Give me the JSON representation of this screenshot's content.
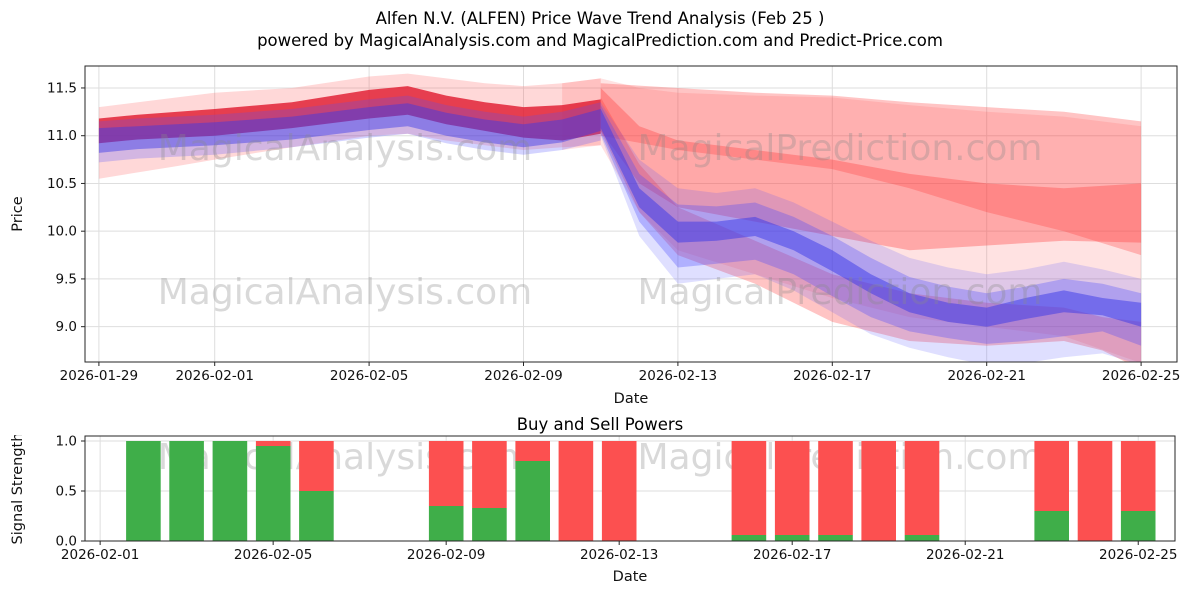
{
  "figure": {
    "title": "Alfen N.V. (ALFEN) Price Wave Trend Analysis (Feb 25 )",
    "subtitle": "powered by MagicalAnalysis.com and MagicalPrediction.com and Predict-Price.com"
  },
  "watermarks": {
    "left": "MagicalAnalysis.com",
    "right": "MagicalPrediction.com"
  },
  "chart_data": [
    {
      "type": "area",
      "name": "price-wave-trend",
      "title": "Alfen N.V. (ALFEN) Price Wave Trend Analysis (Feb 25 )",
      "xlabel": "Date",
      "ylabel": "Price",
      "ylim": [
        8.63,
        11.73
      ],
      "y_ticks": [
        9.0,
        9.5,
        10.0,
        10.5,
        11.0,
        11.5
      ],
      "x_start_date": "2026-01-29",
      "x_range_days": [
        -0.36,
        27.93
      ],
      "x_ticks": [
        {
          "label": "2026-01-29",
          "d": 0
        },
        {
          "label": "2026-02-01",
          "d": 3
        },
        {
          "label": "2026-02-05",
          "d": 7
        },
        {
          "label": "2026-02-09",
          "d": 11
        },
        {
          "label": "2026-02-13",
          "d": 15
        },
        {
          "label": "2026-02-17",
          "d": 19
        },
        {
          "label": "2026-02-21",
          "d": 23
        },
        {
          "label": "2026-02-25",
          "d": 27
        }
      ],
      "grid": true,
      "legend": "none",
      "bands": [
        {
          "name": "red-envelope-left",
          "color": "#ff4d4d",
          "opacity": 0.22,
          "x": [
            0,
            2,
            3,
            5,
            7,
            8,
            9,
            10,
            11,
            12,
            13
          ],
          "upper": [
            11.3,
            11.4,
            11.45,
            11.5,
            11.62,
            11.65,
            11.6,
            11.55,
            11.52,
            11.55,
            11.6
          ],
          "lower": [
            10.55,
            10.68,
            10.75,
            10.88,
            11.0,
            11.02,
            10.95,
            10.9,
            10.85,
            10.88,
            10.9
          ]
        },
        {
          "name": "red-envelope-right-wide",
          "color": "#ff4d4d",
          "opacity": 0.16,
          "x": [
            12,
            13,
            14,
            15,
            17,
            19,
            21,
            23,
            25,
            27
          ],
          "upper": [
            11.55,
            11.6,
            11.5,
            11.45,
            11.42,
            11.4,
            11.32,
            11.25,
            11.2,
            11.1
          ],
          "lower": [
            10.85,
            10.9,
            10.2,
            9.8,
            9.55,
            9.3,
            9.1,
            9.0,
            8.9,
            8.62
          ]
        },
        {
          "name": "red-band-upper-right",
          "color": "#ff3b3b",
          "opacity": 0.3,
          "x": [
            13,
            15,
            17,
            19,
            21,
            23,
            25,
            27
          ],
          "upper": [
            11.55,
            11.5,
            11.45,
            11.42,
            11.35,
            11.3,
            11.25,
            11.15
          ],
          "lower": [
            11.0,
            10.85,
            10.75,
            10.65,
            10.45,
            10.2,
            10.0,
            9.75
          ]
        },
        {
          "name": "red-band-mid-right",
          "color": "#ff3b3b",
          "opacity": 0.35,
          "x": [
            13,
            14,
            15,
            17,
            19,
            21,
            23,
            25,
            27
          ],
          "upper": [
            11.5,
            11.1,
            10.95,
            10.85,
            10.75,
            10.6,
            10.5,
            10.45,
            10.5
          ],
          "lower": [
            11.05,
            10.5,
            10.25,
            10.1,
            9.95,
            9.8,
            9.85,
            9.9,
            9.88
          ]
        },
        {
          "name": "red-band-low-right",
          "color": "#ff3b3b",
          "opacity": 0.3,
          "x": [
            13,
            14,
            15,
            17,
            19,
            21,
            23,
            25,
            26,
            27
          ],
          "upper": [
            11.4,
            10.7,
            10.25,
            9.9,
            9.55,
            9.35,
            9.25,
            9.2,
            9.1,
            9.05
          ],
          "lower": [
            11.05,
            10.2,
            9.75,
            9.45,
            9.05,
            8.85,
            8.8,
            8.85,
            8.75,
            8.55
          ]
        },
        {
          "name": "red-core",
          "color": "#e0182d",
          "opacity": 0.8,
          "x": [
            0,
            1,
            3,
            5,
            7,
            8,
            9,
            10,
            11,
            12,
            13
          ],
          "upper": [
            11.18,
            11.22,
            11.28,
            11.35,
            11.48,
            11.52,
            11.42,
            11.35,
            11.3,
            11.32,
            11.38
          ],
          "lower": [
            10.92,
            10.96,
            11.0,
            11.08,
            11.18,
            11.22,
            11.12,
            11.05,
            10.98,
            10.95,
            11.02
          ]
        },
        {
          "name": "blue-left-outer",
          "color": "#5050ff",
          "opacity": 0.25,
          "x": [
            0,
            1,
            3,
            5,
            7,
            8,
            9,
            10,
            11,
            12,
            13
          ],
          "upper": [
            11.15,
            11.18,
            11.22,
            11.28,
            11.38,
            11.42,
            11.32,
            11.25,
            11.2,
            11.25,
            11.35
          ],
          "lower": [
            10.72,
            10.76,
            10.8,
            10.88,
            10.98,
            11.02,
            10.92,
            10.85,
            10.8,
            10.85,
            10.95
          ]
        },
        {
          "name": "blue-left-core",
          "color": "#3838e8",
          "opacity": 0.45,
          "x": [
            0,
            1,
            3,
            5,
            7,
            8,
            9,
            10,
            11,
            12,
            13
          ],
          "upper": [
            11.08,
            11.1,
            11.14,
            11.2,
            11.3,
            11.34,
            11.24,
            11.17,
            11.12,
            11.17,
            11.28
          ],
          "lower": [
            10.82,
            10.86,
            10.9,
            10.96,
            11.06,
            11.1,
            11.0,
            10.93,
            10.88,
            10.93,
            11.05
          ]
        },
        {
          "name": "blue-fan-wide",
          "color": "#5050ff",
          "opacity": 0.18,
          "x": [
            13,
            14,
            15,
            16,
            17,
            18,
            19,
            20,
            21,
            22,
            23,
            24,
            25,
            26,
            27
          ],
          "upper": [
            11.35,
            10.75,
            10.45,
            10.4,
            10.45,
            10.3,
            10.1,
            9.9,
            9.72,
            9.62,
            9.55,
            9.6,
            9.68,
            9.6,
            9.5
          ],
          "lower": [
            11.0,
            9.95,
            9.45,
            9.5,
            9.55,
            9.38,
            9.15,
            8.92,
            8.78,
            8.68,
            8.6,
            8.62,
            8.68,
            8.72,
            8.6
          ]
        },
        {
          "name": "blue-fan-mid",
          "color": "#4545ff",
          "opacity": 0.3,
          "x": [
            13,
            14,
            15,
            16,
            17,
            18,
            19,
            20,
            21,
            22,
            23,
            24,
            25,
            26,
            27
          ],
          "upper": [
            11.32,
            10.6,
            10.28,
            10.26,
            10.3,
            10.15,
            9.95,
            9.72,
            9.52,
            9.42,
            9.35,
            9.42,
            9.5,
            9.45,
            9.35
          ],
          "lower": [
            11.02,
            10.1,
            9.62,
            9.66,
            9.7,
            9.55,
            9.32,
            9.1,
            8.95,
            8.88,
            8.82,
            8.85,
            8.9,
            8.95,
            8.8
          ]
        },
        {
          "name": "blue-fan-core",
          "color": "#3838e8",
          "opacity": 0.5,
          "x": [
            13,
            14,
            15,
            16,
            17,
            18,
            19,
            20,
            21,
            22,
            23,
            24,
            25,
            26,
            27
          ],
          "upper": [
            11.28,
            10.45,
            10.1,
            10.1,
            10.15,
            10.0,
            9.8,
            9.55,
            9.35,
            9.25,
            9.2,
            9.3,
            9.38,
            9.3,
            9.25
          ],
          "lower": [
            11.08,
            10.25,
            9.88,
            9.9,
            9.95,
            9.8,
            9.58,
            9.35,
            9.15,
            9.05,
            9.0,
            9.08,
            9.15,
            9.12,
            9.0
          ]
        }
      ]
    },
    {
      "type": "bar",
      "name": "buy-sell-powers",
      "title": "Buy and Sell Powers",
      "xlabel": "Date",
      "ylabel": "Signal Strength",
      "ylim": [
        0,
        1.05
      ],
      "y_ticks": [
        0.0,
        0.5,
        1.0
      ],
      "x_start_date": "2026-02-01",
      "x_range_days": [
        -0.35,
        24.85
      ],
      "x_ticks": [
        {
          "label": "2026-02-01",
          "d": 0
        },
        {
          "label": "2026-02-05",
          "d": 4
        },
        {
          "label": "2026-02-09",
          "d": 8
        },
        {
          "label": "2026-02-13",
          "d": 12
        },
        {
          "label": "2026-02-17",
          "d": 16
        },
        {
          "label": "2026-02-21",
          "d": 20
        },
        {
          "label": "2026-02-25",
          "d": 24
        }
      ],
      "bar_width_days": 0.8,
      "colors": {
        "buy": "#3fae49",
        "sell": "#fc5050"
      },
      "bars": [
        {
          "date": "2026-02-02",
          "d": 1,
          "buy": 1.0,
          "sell": 0.0
        },
        {
          "date": "2026-02-03",
          "d": 2,
          "buy": 1.0,
          "sell": 0.0
        },
        {
          "date": "2026-02-04",
          "d": 3,
          "buy": 1.0,
          "sell": 0.0
        },
        {
          "date": "2026-02-05",
          "d": 4,
          "buy": 0.95,
          "sell": 0.05
        },
        {
          "date": "2026-02-06",
          "d": 5,
          "buy": 0.5,
          "sell": 0.5
        },
        {
          "date": "2026-02-09",
          "d": 8,
          "buy": 0.35,
          "sell": 0.65
        },
        {
          "date": "2026-02-10",
          "d": 9,
          "buy": 0.33,
          "sell": 0.67
        },
        {
          "date": "2026-02-11",
          "d": 10,
          "buy": 0.8,
          "sell": 0.2
        },
        {
          "date": "2026-02-12",
          "d": 11,
          "buy": 0.0,
          "sell": 1.0
        },
        {
          "date": "2026-02-13",
          "d": 12,
          "buy": 0.0,
          "sell": 1.0
        },
        {
          "date": "2026-02-16",
          "d": 15,
          "buy": 0.06,
          "sell": 0.94
        },
        {
          "date": "2026-02-17",
          "d": 16,
          "buy": 0.06,
          "sell": 0.94
        },
        {
          "date": "2026-02-18",
          "d": 17,
          "buy": 0.06,
          "sell": 0.94
        },
        {
          "date": "2026-02-19",
          "d": 18,
          "buy": 0.0,
          "sell": 1.0
        },
        {
          "date": "2026-02-20",
          "d": 19,
          "buy": 0.06,
          "sell": 0.94
        },
        {
          "date": "2026-02-23",
          "d": 22,
          "buy": 0.3,
          "sell": 0.7
        },
        {
          "date": "2026-02-24",
          "d": 23,
          "buy": 0.0,
          "sell": 1.0
        },
        {
          "date": "2026-02-25",
          "d": 24,
          "buy": 0.3,
          "sell": 0.7
        }
      ]
    }
  ]
}
